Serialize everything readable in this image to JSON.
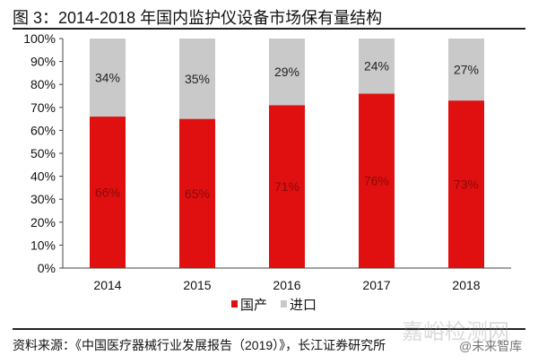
{
  "title": "图 3：2014-2018 年国内监护仪设备市场保有量结构",
  "source": "资料来源：《中国医疗器械行业发展报告（2019）》，长江证券研究所",
  "watermark": "嘉峪检测网",
  "watermark2": "@未来智库",
  "chart_data": {
    "type": "bar",
    "stacked": true,
    "categories": [
      "2014",
      "2015",
      "2016",
      "2017",
      "2018"
    ],
    "series": [
      {
        "name": "国产",
        "values": [
          66,
          65,
          71,
          76,
          73
        ],
        "labels": [
          "66%",
          "65%",
          "71%",
          "76%",
          "73%"
        ],
        "color": "#e01010"
      },
      {
        "name": "进口",
        "values": [
          34,
          35,
          29,
          24,
          27
        ],
        "labels": [
          "34%",
          "35%",
          "29%",
          "24%",
          "27%"
        ],
        "color": "#c9c9c9"
      }
    ],
    "ylim": [
      0,
      100
    ],
    "yticks": [
      "0%",
      "10%",
      "20%",
      "30%",
      "40%",
      "50%",
      "60%",
      "70%",
      "80%",
      "90%",
      "100%"
    ],
    "legend": "bottom",
    "grid": false
  }
}
